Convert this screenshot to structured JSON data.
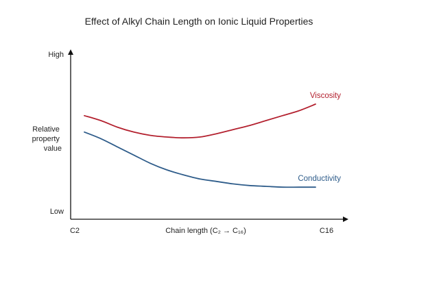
{
  "chart_data": {
    "type": "line",
    "title": "Effect of Alkyl Chain Length on Ionic Liquid Properties",
    "xlabel": "Chain length (C₂ → C₁₆)",
    "ylabel": "Relative property value",
    "x_tick_labels": [
      "C2",
      "C16"
    ],
    "y_tick_labels": [
      "Low",
      "High"
    ],
    "xlim": [
      2,
      16
    ],
    "ylim": [
      0,
      1
    ],
    "grid": false,
    "legend": "none (series labeled inline at line ends)",
    "series": [
      {
        "name": "Viscosity",
        "color": "#b3202e",
        "x": [
          2,
          3,
          4,
          5,
          6,
          7,
          8,
          9,
          10,
          11,
          12,
          13,
          14,
          15,
          16
        ],
        "values": [
          0.63,
          0.6,
          0.56,
          0.53,
          0.51,
          0.5,
          0.495,
          0.5,
          0.52,
          0.545,
          0.57,
          0.6,
          0.63,
          0.66,
          0.7
        ]
      },
      {
        "name": "Conductivity",
        "color": "#2e5c8a",
        "x": [
          2,
          3,
          4,
          5,
          6,
          7,
          8,
          9,
          10,
          11,
          12,
          13,
          14,
          15,
          16
        ],
        "values": [
          0.53,
          0.49,
          0.44,
          0.39,
          0.34,
          0.3,
          0.27,
          0.245,
          0.23,
          0.215,
          0.205,
          0.2,
          0.195,
          0.195,
          0.195
        ]
      }
    ]
  }
}
